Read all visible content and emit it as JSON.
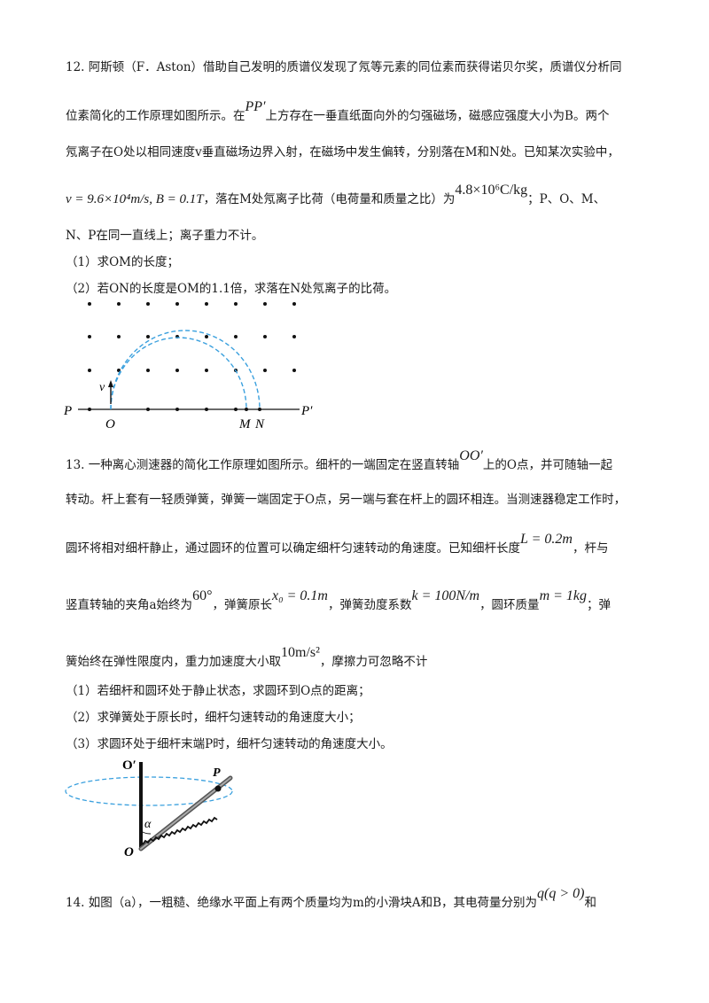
{
  "q12": {
    "line1": "12. 阿斯顿（F．Aston）借助自己发明的质谱仪发现了氖等元素的同位素而获得诺贝尔奖，质谱仪分析同",
    "line2a": "位素简化的工作原理如图所示。在",
    "line2_math": "PP′",
    "line2b": "上方存在一垂直纸面向外的匀强磁场，磁感应强度大小为B。两个",
    "line3": "氖离子在O处以相同速度v垂直磁场边界入射，在磁场中发生偏转，分别落在M和N处。已知某次实验中，",
    "line4_math": "v = 9.6×10⁴m/s, B = 0.1T",
    "line4a": "，落在M处氖离子比荷（电荷量和质量之比）为",
    "line4_math2": "4.8×10⁶C/kg",
    "line4b": "；P、O、M、",
    "line5": "N、P在同一直线上；离子重力不计。",
    "sub1": "（1）求OM的长度；",
    "sub2": "（2）若ON的长度是OM的1.1倍，求落在N处氖离子的比荷。",
    "fig_labels": {
      "P": "P",
      "O": "O",
      "M": "M",
      "N": "N",
      "Pp": "P′",
      "v": "v"
    }
  },
  "q13": {
    "line1a": "13. 一种离心测速器的简化工作原理如图所示。细杆的一端固定在竖直转轴",
    "line1_math": "OO′",
    "line1b": "上的O点，并可随轴一起",
    "line2": "转动。杆上套有一轻质弹簧，弹簧一端固定于O点，另一端与套在杆上的圆环相连。当测速器稳定工作时，",
    "line3a": "圆环将相对细杆静止，通过圆环的位置可以确定细杆匀速转动的角速度。已知细杆长度",
    "line3_math": "L = 0.2m",
    "line3b": "，杆与",
    "line4a": "竖直转轴的夹角a始终为",
    "line4_m1": "60°",
    "line4b": "，弹簧原长",
    "line4_m2": "x₀ = 0.1m",
    "line4c": "，弹簧劲度系数",
    "line4_m3": "k = 100N/m",
    "line4d": "，圆环质量",
    "line4_m4": "m = 1kg",
    "line4e": "；弹",
    "line5a": "簧始终在弹性限度内，重力加速度大小取",
    "line5_math": "10m/s²",
    "line5b": "，摩擦力可忽略不计",
    "sub1": "（1）若细杆和圆环处于静止状态，求圆环到O点的距离；",
    "sub2": "（2）求弹簧处于原长时，细杆匀速转动的角速度大小；",
    "sub3": "（3）求圆环处于细杆末端P时，细杆匀速转动的角速度大小。",
    "fig_labels": {
      "Op": "O′",
      "P": "P",
      "alpha": "α",
      "O": "O"
    }
  },
  "q14": {
    "line1a": "14. 如图（a），一粗糙、绝缘水平面上有两个质量均为m的小滑块A和B，其电荷量分别为",
    "line1_math": "q(q > 0)",
    "line1b": "和"
  }
}
